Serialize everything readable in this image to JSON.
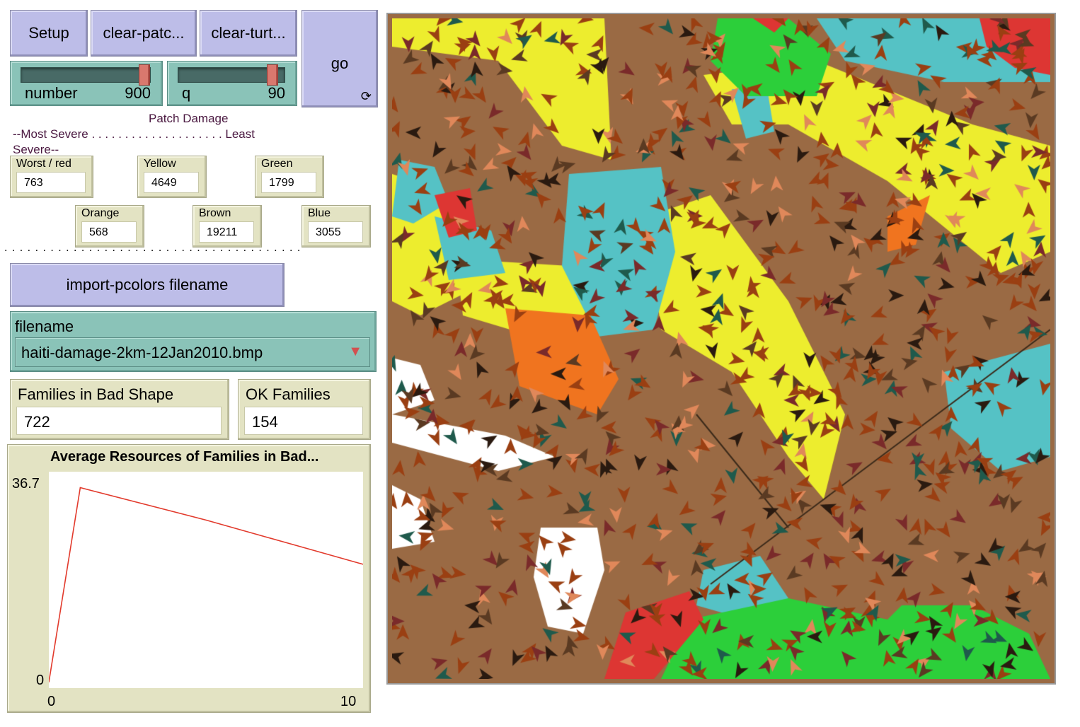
{
  "buttons": {
    "setup": "Setup",
    "clear_patches": "clear-patc...",
    "clear_turtles": "clear-turt...",
    "go": "go",
    "import": "import-pcolors filename"
  },
  "sliders": {
    "number": {
      "label": "number",
      "value": "900",
      "fraction": 0.97
    },
    "q": {
      "label": "q",
      "value": "90",
      "fraction": 0.9
    }
  },
  "notes": {
    "patch_damage": "Patch Damage",
    "scale": "--Most Severe . . . . . . . . . . . . . . . . . . . .  Least",
    "scale2": "Severe--",
    "dots": ". . . . . . . . . . . . . . . . . . . . . . . . . . . . . . . . . . . . . . . . . . . ."
  },
  "monitors": {
    "red": {
      "label": "Worst / red",
      "value": "763"
    },
    "yellow": {
      "label": "Yellow",
      "value": "4649"
    },
    "green": {
      "label": "Green",
      "value": "1799"
    },
    "orange": {
      "label": "Orange",
      "value": "568"
    },
    "brown": {
      "label": "Brown",
      "value": "19211"
    },
    "blue": {
      "label": "Blue",
      "value": "3055"
    },
    "bad": {
      "label": "Families in Bad Shape",
      "value": "722"
    },
    "ok": {
      "label": "OK Families",
      "value": "154"
    }
  },
  "chooser": {
    "label": "filename",
    "value": "haiti-damage-2km-12Jan2010.bmp"
  },
  "plot": {
    "title": "Average Resources of Families in Bad...",
    "ymax": "36.7",
    "ymin": "0",
    "xmin": "0",
    "xmax": "10"
  },
  "chart_data": {
    "type": "line",
    "title": "Average Resources of Families in Bad...",
    "xlim": [
      0,
      10
    ],
    "ylim": [
      0,
      36.7
    ],
    "series": [
      {
        "color": "#e23a2c",
        "x": [
          0,
          1,
          5,
          8,
          10
        ],
        "y": [
          1.0,
          34.0,
          28.5,
          24.0,
          21.0
        ]
      }
    ]
  },
  "colors": {
    "brown": "#9a6a44",
    "yellow": "#eded2e",
    "cyan": "#55c2c5",
    "green": "#2ccf3a",
    "red": "#dd3633",
    "orange": "#f0741f",
    "white": "#ffffff"
  }
}
